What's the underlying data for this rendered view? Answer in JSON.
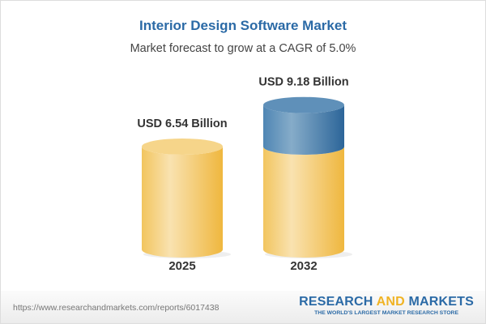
{
  "chart_data": {
    "type": "bar",
    "style": "3d-cylinder",
    "title": "Interior Design Software Market",
    "subtitle": "Market forecast to grow at a CAGR of 5.0%",
    "categories": [
      "2025",
      "2032"
    ],
    "values": [
      6.54,
      9.18
    ],
    "data_labels": [
      "USD 6.54 Billion",
      "USD 9.18 Billion"
    ],
    "unit": "USD Billion",
    "colors": {
      "base": "#f0c35a",
      "growth": "#3f78a8",
      "title": "#2b6aa6"
    }
  },
  "footer": {
    "url": "https://www.researchandmarkets.com/reports/6017438",
    "logo_word1": "RESEARCH ",
    "logo_word2": "AND",
    "logo_word3": " MARKETS",
    "tagline": "THE WORLD'S LARGEST MARKET RESEARCH STORE"
  }
}
